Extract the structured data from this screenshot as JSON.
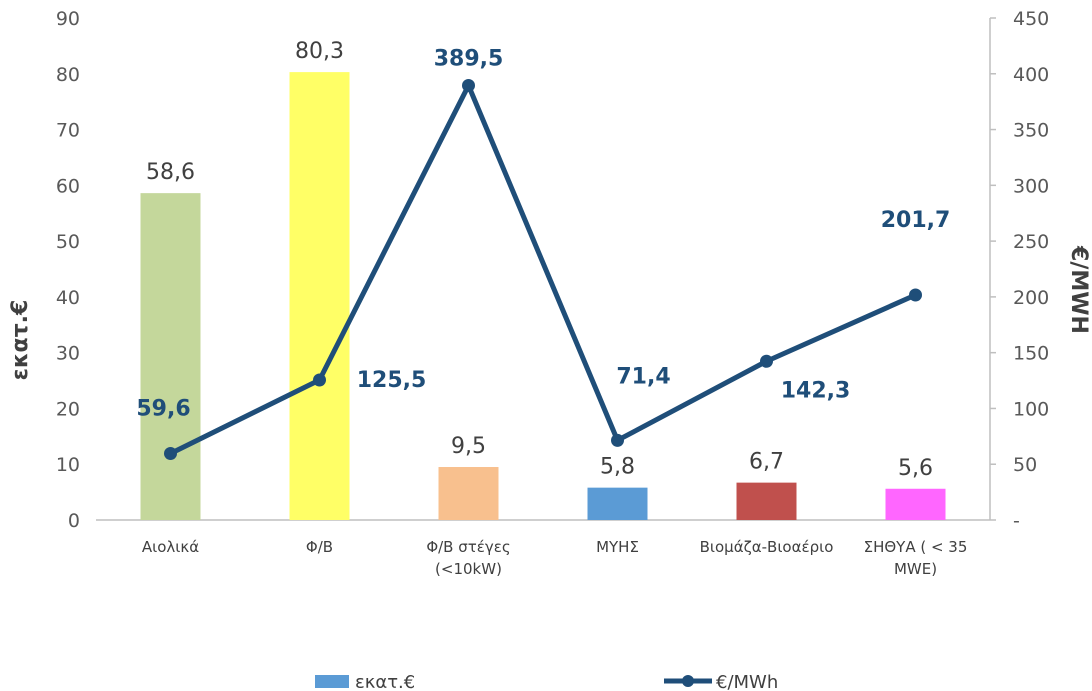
{
  "chart_data": {
    "type": "bar+line",
    "categories": [
      [
        "Αιολικά"
      ],
      [
        "Φ/Β"
      ],
      [
        "Φ/Β στέγες",
        "(<10kW)"
      ],
      [
        "ΜΥΗΣ"
      ],
      [
        "Βιομάζα-Βιοαέριο"
      ],
      [
        "ΣΗΘΥΑ ( < 35",
        "MWE)"
      ]
    ],
    "bar_series": {
      "name": "εκατ.€",
      "values": [
        58.6,
        80.3,
        9.5,
        5.8,
        6.7,
        5.6
      ],
      "labels": [
        "58,6",
        "80,3",
        "9,5",
        "5,8",
        "6,7",
        "5,6"
      ],
      "colors": [
        "#c4d79b",
        "#ffff66",
        "#f8c08e",
        "#5b9bd5",
        "#c0504d",
        "#ff66ff"
      ]
    },
    "line_series": {
      "name": "€/MWh",
      "values": [
        59.6,
        125.5,
        389.5,
        71.4,
        142.3,
        201.7
      ],
      "labels": [
        "59,6",
        "125,5",
        "389,5",
        "71,4",
        "142,3",
        "201,7"
      ],
      "color": "#1f4e79"
    },
    "ylabel_left": "εκατ.€",
    "ylabel_right": "€/MWH",
    "ylim_left": [
      0,
      90
    ],
    "yticks_left": [
      "0",
      "10",
      "20",
      "30",
      "40",
      "50",
      "60",
      "70",
      "80",
      "90"
    ],
    "ylim_right": [
      0,
      450
    ],
    "yticks_right": [
      "-",
      "50",
      "100",
      "150",
      "200",
      "250",
      "300",
      "350",
      "400",
      "450"
    ],
    "grid": false,
    "legend": "bottom",
    "legend_entries": [
      "εκατ.€",
      "€/MWh"
    ]
  }
}
